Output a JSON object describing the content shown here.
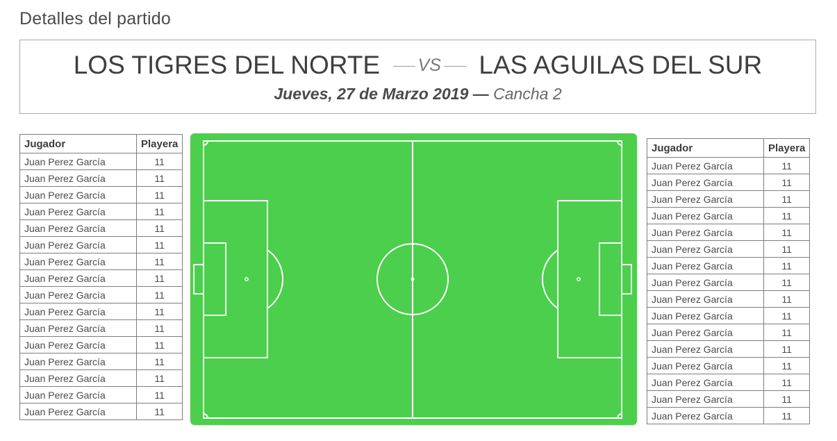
{
  "page": {
    "heading": "Detalles del partido"
  },
  "match": {
    "home_team": "LOS TIGRES DEL NORTE",
    "vs_label": "VS",
    "away_team": "LAS AGUILAS DEL SUR",
    "date": "Jueves, 27 de Marzo 2019",
    "date_venue_separator": "—",
    "venue": "Cancha 2"
  },
  "colors": {
    "pitch": "#4ccf4c",
    "pitch_lines": "#ffffff",
    "table_border": "#7d7d7d"
  },
  "rosters": {
    "home": {
      "headers": {
        "player": "Jugador",
        "shirt": "Playera"
      },
      "rows": [
        {
          "player": "Juan Perez García",
          "shirt": "11"
        },
        {
          "player": "Juan Perez García",
          "shirt": "11"
        },
        {
          "player": "Juan Perez García",
          "shirt": "11"
        },
        {
          "player": "Juan Perez García",
          "shirt": "11"
        },
        {
          "player": "Juan Perez García",
          "shirt": "11"
        },
        {
          "player": "Juan Perez García",
          "shirt": "11"
        },
        {
          "player": "Juan Perez García",
          "shirt": "11"
        },
        {
          "player": "Juan Perez García",
          "shirt": "11"
        },
        {
          "player": "Juan Perez García",
          "shirt": "11"
        },
        {
          "player": "Juan Perez García",
          "shirt": "11"
        },
        {
          "player": "Juan Perez García",
          "shirt": "11"
        },
        {
          "player": "Juan Perez García",
          "shirt": "11"
        },
        {
          "player": "Juan Perez García",
          "shirt": "11"
        },
        {
          "player": "Juan Perez García",
          "shirt": "11"
        },
        {
          "player": "Juan Perez García",
          "shirt": "11"
        },
        {
          "player": "Juan Perez García",
          "shirt": "11"
        }
      ]
    },
    "away": {
      "headers": {
        "player": "Jugador",
        "shirt": "Playera"
      },
      "rows": [
        {
          "player": "Juan Perez García",
          "shirt": "11"
        },
        {
          "player": "Juan Perez García",
          "shirt": "11"
        },
        {
          "player": "Juan Perez García",
          "shirt": "11"
        },
        {
          "player": "Juan Perez García",
          "shirt": "11"
        },
        {
          "player": "Juan Perez García",
          "shirt": "11"
        },
        {
          "player": "Juan Perez García",
          "shirt": "11"
        },
        {
          "player": "Juan Perez García",
          "shirt": "11"
        },
        {
          "player": "Juan Perez García",
          "shirt": "11"
        },
        {
          "player": "Juan Perez García",
          "shirt": "11"
        },
        {
          "player": "Juan Perez García",
          "shirt": "11"
        },
        {
          "player": "Juan Perez García",
          "shirt": "11"
        },
        {
          "player": "Juan Perez García",
          "shirt": "11"
        },
        {
          "player": "Juan Perez García",
          "shirt": "11"
        },
        {
          "player": "Juan Perez García",
          "shirt": "11"
        },
        {
          "player": "Juan Perez García",
          "shirt": "11"
        },
        {
          "player": "Juan Perez García",
          "shirt": "11"
        }
      ]
    }
  }
}
